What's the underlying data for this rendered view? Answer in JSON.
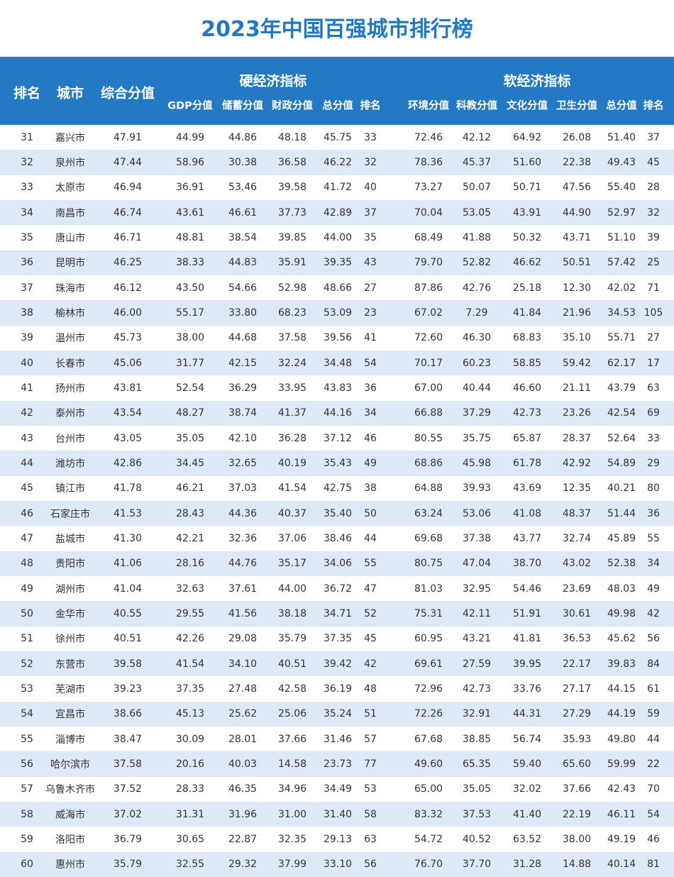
{
  "header": {
    "title": "2023年中国百强城市排行榜"
  },
  "table": {
    "rank": "排名",
    "city": "城市",
    "score": "综合分值",
    "groups": [
      {
        "title": "硬经济指标",
        "columns": [
          "GDP分值",
          "储蓄分值",
          "财政分值",
          "总分值",
          "排名"
        ]
      },
      {
        "title": "软经济指标",
        "columns": [
          "环境分值",
          "科教分值",
          "文化分值",
          "卫生分值",
          "总分值",
          "排名"
        ]
      }
    ],
    "rows": [
      [
        "31",
        "嘉兴市",
        "47.91",
        "44.99",
        "44.86",
        "48.18",
        "45.75",
        "33",
        "72.46",
        "42.12",
        "64.92",
        "26.08",
        "51.40",
        "37"
      ],
      [
        "32",
        "泉州市",
        "47.44",
        "58.96",
        "30.38",
        "36.58",
        "46.22",
        "32",
        "78.36",
        "45.37",
        "51.60",
        "22.38",
        "49.43",
        "45"
      ],
      [
        "33",
        "太原市",
        "46.94",
        "36.91",
        "53.46",
        "39.58",
        "41.72",
        "40",
        "73.27",
        "50.07",
        "50.71",
        "47.56",
        "55.40",
        "28"
      ],
      [
        "34",
        "南昌市",
        "46.74",
        "43.61",
        "46.61",
        "37.73",
        "42.89",
        "37",
        "70.04",
        "53.05",
        "43.91",
        "44.90",
        "52.97",
        "32"
      ],
      [
        "35",
        "唐山市",
        "46.71",
        "48.81",
        "38.54",
        "39.85",
        "44.00",
        "35",
        "68.49",
        "41.88",
        "50.32",
        "43.71",
        "51.10",
        "39"
      ],
      [
        "36",
        "昆明市",
        "46.25",
        "38.33",
        "44.83",
        "35.91",
        "39.35",
        "43",
        "79.70",
        "52.82",
        "46.62",
        "50.51",
        "57.42",
        "25"
      ],
      [
        "37",
        "珠海市",
        "46.12",
        "43.50",
        "54.66",
        "52.98",
        "48.66",
        "27",
        "87.86",
        "42.76",
        "25.18",
        "12.30",
        "42.02",
        "71"
      ],
      [
        "38",
        "榆林市",
        "46.00",
        "55.17",
        "33.80",
        "68.23",
        "53.09",
        "23",
        "67.02",
        "7.29",
        "41.84",
        "21.96",
        "34.53",
        "105"
      ],
      [
        "39",
        "温州市",
        "45.73",
        "38.00",
        "44.68",
        "37.58",
        "39.56",
        "41",
        "72.60",
        "46.30",
        "68.83",
        "35.10",
        "55.71",
        "27"
      ],
      [
        "40",
        "长春市",
        "45.06",
        "31.77",
        "42.15",
        "32.24",
        "34.48",
        "54",
        "70.17",
        "60.23",
        "58.85",
        "59.42",
        "62.17",
        "17"
      ],
      [
        "41",
        "扬州市",
        "43.81",
        "52.54",
        "36.29",
        "33.95",
        "43.83",
        "36",
        "67.00",
        "40.44",
        "46.60",
        "21.11",
        "43.79",
        "63"
      ],
      [
        "42",
        "泰州市",
        "43.54",
        "48.27",
        "38.74",
        "41.37",
        "44.16",
        "34",
        "66.88",
        "37.29",
        "42.73",
        "23.26",
        "42.54",
        "69"
      ],
      [
        "43",
        "台州市",
        "43.05",
        "35.05",
        "42.10",
        "36.28",
        "37.12",
        "46",
        "80.55",
        "35.75",
        "65.87",
        "28.37",
        "52.64",
        "33"
      ],
      [
        "44",
        "潍坊市",
        "42.86",
        "34.45",
        "32.65",
        "40.19",
        "35.43",
        "49",
        "68.86",
        "45.98",
        "61.78",
        "42.92",
        "54.89",
        "29"
      ],
      [
        "45",
        "镇江市",
        "41.78",
        "46.21",
        "37.03",
        "41.54",
        "42.75",
        "38",
        "64.88",
        "39.93",
        "43.69",
        "12.35",
        "40.21",
        "80"
      ],
      [
        "46",
        "石家庄市",
        "41.53",
        "28.43",
        "44.36",
        "40.37",
        "35.40",
        "50",
        "63.24",
        "53.06",
        "41.08",
        "48.37",
        "51.44",
        "36"
      ],
      [
        "47",
        "盐城市",
        "41.30",
        "42.21",
        "32.36",
        "37.06",
        "38.46",
        "44",
        "69.68",
        "37.38",
        "43.77",
        "32.74",
        "45.89",
        "55"
      ],
      [
        "48",
        "贵阳市",
        "41.06",
        "28.16",
        "44.76",
        "35.17",
        "34.06",
        "55",
        "80.75",
        "47.04",
        "38.70",
        "43.02",
        "52.38",
        "34"
      ],
      [
        "49",
        "湖州市",
        "41.04",
        "32.63",
        "37.61",
        "44.00",
        "36.72",
        "47",
        "81.03",
        "32.95",
        "54.46",
        "23.69",
        "48.03",
        "49"
      ],
      [
        "50",
        "金华市",
        "40.55",
        "29.55",
        "41.56",
        "38.18",
        "34.71",
        "52",
        "75.31",
        "42.11",
        "51.91",
        "30.61",
        "49.98",
        "42"
      ],
      [
        "51",
        "徐州市",
        "40.51",
        "42.26",
        "29.08",
        "35.79",
        "37.35",
        "45",
        "60.95",
        "43.21",
        "41.81",
        "36.53",
        "45.62",
        "56"
      ],
      [
        "52",
        "东营市",
        "39.58",
        "41.54",
        "34.10",
        "40.51",
        "39.42",
        "42",
        "69.61",
        "27.59",
        "39.95",
        "22.17",
        "39.83",
        "84"
      ],
      [
        "53",
        "芜湖市",
        "39.23",
        "37.35",
        "27.48",
        "42.58",
        "36.19",
        "48",
        "72.96",
        "42.73",
        "33.76",
        "27.17",
        "44.15",
        "61"
      ],
      [
        "54",
        "宜昌市",
        "38.66",
        "45.13",
        "25.62",
        "25.06",
        "35.24",
        "51",
        "72.26",
        "32.91",
        "44.31",
        "27.29",
        "44.19",
        "59"
      ],
      [
        "55",
        "淄博市",
        "38.47",
        "30.09",
        "28.01",
        "37.66",
        "31.46",
        "57",
        "67.68",
        "38.85",
        "56.74",
        "35.93",
        "49.80",
        "44"
      ],
      [
        "56",
        "哈尔滨市",
        "37.58",
        "20.16",
        "40.03",
        "14.58",
        "23.73",
        "77",
        "49.60",
        "65.35",
        "59.40",
        "65.60",
        "59.99",
        "22"
      ],
      [
        "57",
        "乌鲁木齐市",
        "37.52",
        "28.33",
        "46.35",
        "34.96",
        "34.49",
        "53",
        "65.00",
        "35.05",
        "32.02",
        "37.66",
        "42.43",
        "70"
      ],
      [
        "58",
        "威海市",
        "37.02",
        "31.31",
        "31.96",
        "31.00",
        "31.40",
        "58",
        "83.32",
        "37.53",
        "41.40",
        "22.19",
        "46.11",
        "54"
      ],
      [
        "59",
        "洛阳市",
        "36.79",
        "30.65",
        "22.87",
        "32.35",
        "29.13",
        "63",
        "54.72",
        "40.52",
        "63.52",
        "38.00",
        "49.19",
        "46"
      ],
      [
        "60",
        "惠州市",
        "35.79",
        "32.55",
        "29.32",
        "37.99",
        "33.10",
        "56",
        "76.70",
        "37.70",
        "31.28",
        "14.88",
        "40.14",
        "81"
      ]
    ]
  }
}
